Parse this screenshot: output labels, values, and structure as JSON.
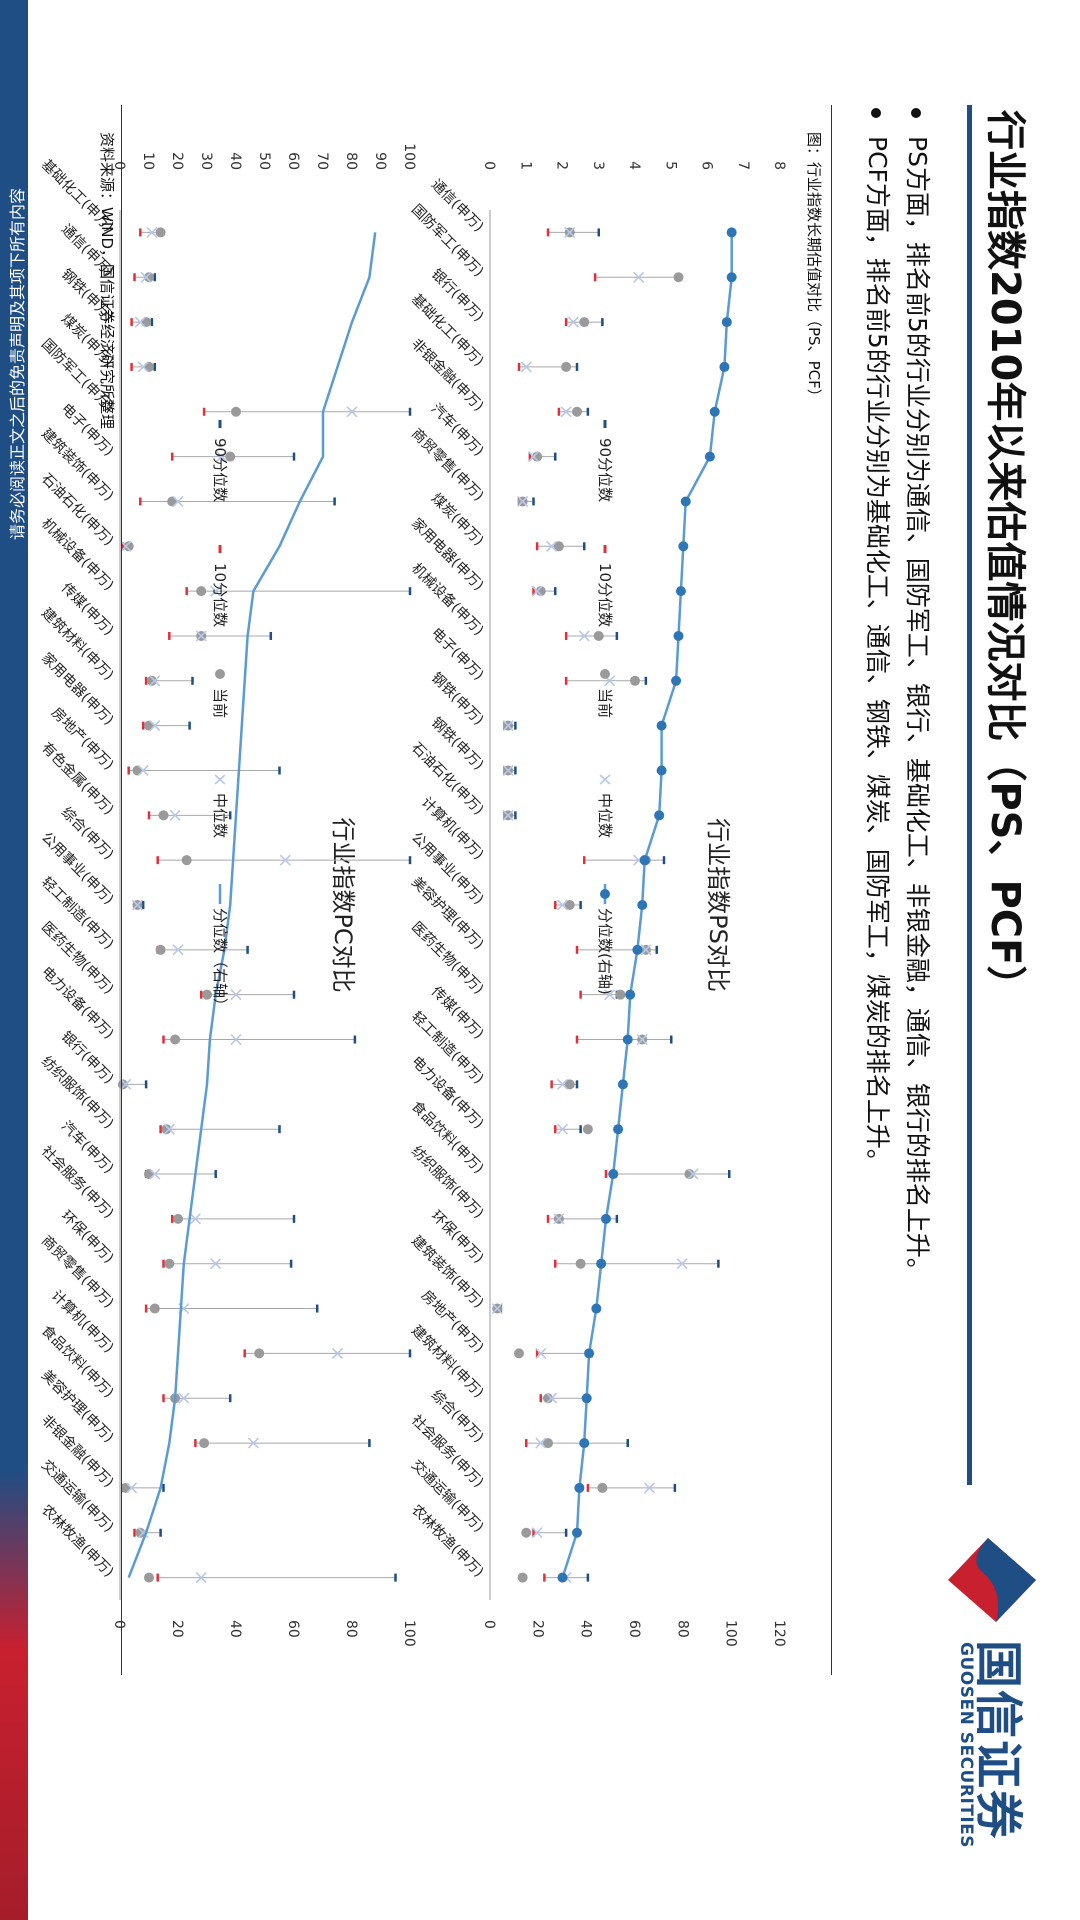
{
  "header": {
    "title": "行业指数2010年以来估值情况对比（PS、PCF）",
    "bullets": [
      "PS方面，排名前5的行业分别为通信、国防军工、银行、基础化工、非银金融，通信、银行的排名上升。",
      "PCF方面，排名前5的行业分别为基础化工、通信、钢铁、煤炭、国防军工，煤炭的排名上升。"
    ]
  },
  "logo": {
    "cn": "国信证券",
    "en": "GUOSEN SECURITIES"
  },
  "figure": {
    "caption": "图：行业指数长期估值对比（PS、PCF）",
    "source": "资料来源：WIND，国信证券经济研究所整理"
  },
  "footer": {
    "disclaimer": "请务必阅读正文之后的免责声明及其项下所有内容"
  },
  "colors": {
    "brand": "#1f4e84",
    "accent_red": "#c8202f",
    "line": "#5b9bd5",
    "p10": "#e0303a",
    "current": "#9a9a9a",
    "median": "#b8c8e8"
  },
  "chart_data": [
    {
      "type": "scatter",
      "title": "行业指数PS对比",
      "legend": [
        "90分位数",
        "10分位数",
        "当前",
        "中位数",
        "分位数(右轴)"
      ],
      "legend_position": "top",
      "yleft": {
        "ticks": [
          0,
          1,
          2,
          3,
          4,
          5,
          6,
          7,
          8
        ],
        "range": [
          0,
          8
        ]
      },
      "yright": {
        "ticks": [
          0,
          20,
          40,
          60,
          80,
          100,
          120
        ],
        "range": [
          0,
          120
        ]
      },
      "categories": [
        "通信(申万)",
        "国防军工(申万)",
        "银行(申万)",
        "基础化工(申万)",
        "非银金融(申万)",
        "汽车(申万)",
        "商贸零售(申万)",
        "煤炭(申万)",
        "家用电器(申万)",
        "机械设备(申万)",
        "电子(申万)",
        "钢铁(申万)",
        "钢铁(申万)",
        "石油石化(申万)",
        "计算机(申万)",
        "公用事业(申万)",
        "美容护理(申万)",
        "医药生物(申万)",
        "传媒(申万)",
        "轻工制造(申万)",
        "电力设备(申万)",
        "食品饮料(申万)",
        "纺织服饰(申万)",
        "环保(申万)",
        "建筑装饰(申万)",
        "房地产(申万)",
        "建筑材料(申万)",
        "综合(申万)",
        "社会服务(申万)",
        "交通运输(申万)",
        "农林牧渔(申万)"
      ],
      "series": [
        {
          "name": "90分位数",
          "values": [
            3.0,
            5.2,
            3.1,
            2.4,
            2.7,
            1.8,
            1.2,
            2.6,
            1.8,
            3.5,
            4.3,
            0.7,
            0.7,
            0.7,
            4.8,
            2.5,
            4.6,
            3.5,
            5.0,
            2.4,
            2.5,
            6.6,
            3.5,
            6.3,
            0.3,
            2.8,
            2.7,
            3.8,
            5.1,
            2.1,
            2.7
          ]
        },
        {
          "name": "10分位数",
          "values": [
            1.6,
            2.9,
            2.1,
            0.8,
            1.9,
            1.1,
            0.8,
            1.3,
            1.2,
            2.1,
            2.1,
            0.4,
            0.4,
            0.4,
            2.6,
            1.8,
            2.4,
            2.5,
            2.4,
            1.7,
            1.8,
            3.2,
            1.6,
            1.8,
            0.2,
            1.3,
            1.4,
            1.0,
            2.7,
            1.2,
            1.5
          ]
        },
        {
          "name": "当前",
          "values": [
            2.2,
            5.2,
            2.6,
            2.1,
            2.4,
            1.3,
            0.9,
            1.9,
            1.4,
            3.0,
            4.0,
            0.5,
            0.5,
            0.5,
            4.3,
            2.2,
            4.3,
            3.6,
            4.2,
            2.2,
            2.7,
            5.5,
            1.9,
            2.5,
            0.2,
            0.8,
            1.6,
            1.6,
            3.1,
            1.0,
            0.9
          ]
        },
        {
          "name": "中位数",
          "values": [
            2.2,
            4.1,
            2.3,
            1.0,
            2.1,
            1.2,
            0.9,
            1.7,
            1.3,
            2.6,
            3.3,
            0.5,
            0.5,
            0.5,
            4.1,
            2.0,
            4.3,
            3.3,
            4.2,
            2.0,
            2.0,
            5.6,
            1.9,
            5.3,
            0.2,
            1.4,
            1.7,
            1.4,
            4.4,
            1.3,
            2.1
          ]
        },
        {
          "name": "分位数(右轴)",
          "values": [
            100,
            100,
            98,
            97,
            93,
            91,
            81,
            80,
            79,
            78,
            77,
            71,
            71,
            70,
            64,
            63,
            61,
            58,
            57,
            55,
            53,
            51,
            48,
            46,
            44,
            41,
            40,
            39,
            37,
            36,
            30
          ]
        }
      ]
    },
    {
      "type": "scatter",
      "title": "行业指数PC对比",
      "legend": [
        "90分位数",
        "10分位数",
        "当前",
        "中位数",
        "分位数（右轴）"
      ],
      "legend_position": "top",
      "yleft": {
        "ticks": [
          0,
          10,
          20,
          30,
          40,
          50,
          60,
          70,
          80,
          90,
          100
        ],
        "range": [
          0,
          100
        ]
      },
      "yright": {
        "ticks": [
          0,
          20,
          40,
          60,
          80,
          100
        ],
        "range": [
          0,
          100
        ]
      },
      "categories": [
        "基础化工(申万)",
        "通信(申万)",
        "钢铁(申万)",
        "煤炭(申万)",
        "国防军工(申万)",
        "电子(申万)",
        "建筑装饰(申万)",
        "石油石化(申万)",
        "机械设备(申万)",
        "传媒(申万)",
        "建筑材料(申万)",
        "家用电器(申万)",
        "房地产(申万)",
        "有色金属(申万)",
        "综合(申万)",
        "公用事业(申万)",
        "轻工制造(申万)",
        "医药生物(申万)",
        "电力设备(申万)",
        "银行(申万)",
        "纺织服饰(申万)",
        "汽车(申万)",
        "社会服务(申万)",
        "环保(申万)",
        "商贸零售(申万)",
        "计算机(申万)",
        "食品饮料(申万)",
        "美容护理(申万)",
        "非银金融(申万)",
        "交通运输(申万)",
        "农林牧渔(申万)"
      ],
      "series": [
        {
          "name": "90分位数",
          "values": [
            14,
            12,
            11,
            12,
            100,
            60,
            74,
            3,
            100,
            52,
            25,
            24,
            55,
            38,
            100,
            8,
            44,
            60,
            81,
            9,
            55,
            33,
            60,
            59,
            68,
            100,
            38,
            86,
            15,
            14,
            95
          ]
        },
        {
          "name": "10分位数",
          "values": [
            7,
            5,
            4,
            4,
            29,
            18,
            7,
            1,
            23,
            17,
            9,
            8,
            3,
            10,
            13,
            5,
            13,
            28,
            15,
            1,
            14,
            9,
            18,
            15,
            9,
            43,
            15,
            26,
            1,
            5,
            13
          ]
        },
        {
          "name": "当前",
          "values": [
            14,
            10,
            9,
            10,
            40,
            38,
            18,
            3,
            28,
            28,
            11,
            10,
            6,
            15,
            23,
            6,
            14,
            30,
            19,
            1,
            16,
            10,
            20,
            17,
            12,
            48,
            19,
            29,
            2,
            7,
            10
          ]
        },
        {
          "name": "中位数",
          "values": [
            11,
            9,
            7,
            8,
            80,
            35,
            20,
            2,
            33,
            28,
            12,
            12,
            8,
            19,
            57,
            6,
            20,
            40,
            40,
            2,
            17,
            12,
            26,
            33,
            22,
            75,
            22,
            46,
            4,
            8,
            28
          ]
        },
        {
          "name": "分位数（右轴）",
          "values": [
            88,
            86,
            80,
            75,
            70,
            70,
            62,
            55,
            46,
            44,
            43,
            42,
            41,
            40,
            39,
            38,
            36,
            33,
            31,
            30,
            28,
            26,
            24,
            22,
            21,
            20,
            19,
            17,
            14,
            9,
            3
          ]
        }
      ]
    }
  ]
}
